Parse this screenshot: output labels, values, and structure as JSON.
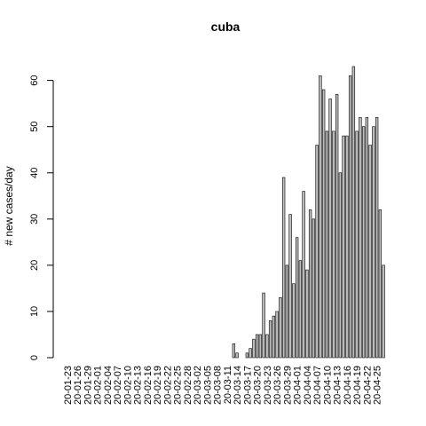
{
  "chart_data": {
    "type": "bar",
    "title": "cuba",
    "xlabel": "",
    "ylabel": "# new cases/day",
    "ylim": [
      0,
      63
    ],
    "y_ticks": [
      0,
      10,
      20,
      30,
      40,
      50,
      60
    ],
    "start_date": "2020-01-23",
    "x_tick_labels": [
      "20-01-23",
      "20-01-26",
      "20-01-29",
      "20-02-01",
      "20-02-04",
      "20-02-07",
      "20-02-10",
      "20-02-13",
      "20-02-16",
      "20-02-19",
      "20-02-22",
      "20-02-25",
      "20-02-28",
      "20-03-02",
      "20-03-05",
      "20-03-08",
      "20-03-11",
      "20-03-14",
      "20-03-17",
      "20-03-20",
      "20-03-23",
      "20-03-26",
      "20-03-29",
      "20-04-01",
      "20-04-04",
      "20-04-07",
      "20-04-10",
      "20-04-13",
      "20-04-16",
      "20-04-19",
      "20-04-22",
      "20-04-25"
    ],
    "bar_color": "#bebebe",
    "values": [
      0,
      0,
      0,
      0,
      0,
      0,
      0,
      0,
      0,
      0,
      0,
      0,
      0,
      0,
      0,
      0,
      0,
      0,
      0,
      0,
      0,
      0,
      0,
      0,
      0,
      0,
      0,
      0,
      0,
      0,
      0,
      0,
      0,
      0,
      0,
      0,
      0,
      0,
      0,
      0,
      0,
      0,
      0,
      0,
      0,
      0,
      0,
      0,
      0,
      0,
      3,
      1,
      0,
      0,
      1,
      2,
      4,
      5,
      5,
      14,
      5,
      8,
      9,
      10,
      13,
      39,
      20,
      31,
      16,
      26,
      21,
      36,
      19,
      32,
      30,
      46,
      61,
      58,
      49,
      56,
      49,
      57,
      40,
      48,
      48,
      61,
      63,
      49,
      52,
      50,
      52,
      46,
      50,
      52,
      32,
      20
    ]
  }
}
